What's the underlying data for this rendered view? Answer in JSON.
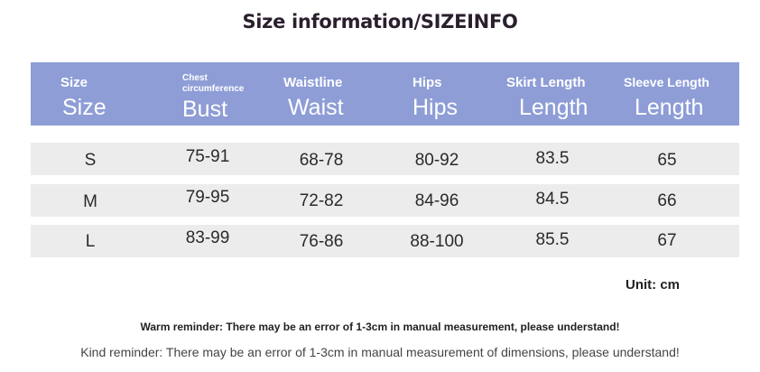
{
  "title": "Size information/SIZEINFO",
  "header": {
    "size_small": "Size",
    "size_big": "Size",
    "bust_small": "Chest circumference",
    "bust_big": "Bust",
    "waist_small": "Waistline",
    "waist_big": "Waist",
    "hips_small": "Hips",
    "hips_big": "Hips",
    "skirt_small": "Skirt Length",
    "skirt_big": "Length",
    "sleeve_small": "Sleeve Length",
    "sleeve_big": "Length"
  },
  "rows": [
    {
      "size": "S",
      "bust": "75-91",
      "waist": "68-78",
      "hips": "80-92",
      "skirt": "83.5",
      "sleeve": "65"
    },
    {
      "size": "M",
      "bust": "79-95",
      "waist": "72-82",
      "hips": "84-96",
      "skirt": "84.5",
      "sleeve": "66"
    },
    {
      "size": "L",
      "bust": "83-99",
      "waist": "76-86",
      "hips": "88-100",
      "skirt": "85.5",
      "sleeve": "67"
    }
  ],
  "unit": "Unit: cm",
  "warm_reminder": "Warm reminder: There may be an error of 1-3cm in manual measurement, please understand!",
  "kind_reminder": "Kind reminder: There may be an error of 1-3cm in manual measurement of dimensions, please understand!",
  "colors": {
    "header_bg": "#8e9dd6",
    "row_bg": "#ececec"
  }
}
